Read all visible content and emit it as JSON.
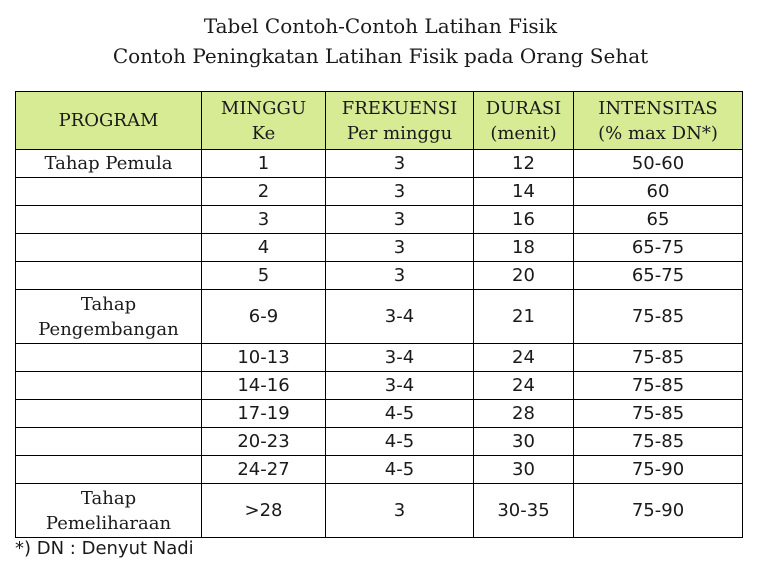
{
  "title_line1": "Tabel Contoh-Contoh Latihan Fisik",
  "title_line2": "Contoh Peningkatan Latihan Fisik pada Orang Sehat",
  "headers": [
    {
      "line1": "PROGRAM",
      "line2": ""
    },
    {
      "line1": "MINGGU",
      "line2": "Ke"
    },
    {
      "line1": "FREKUENSI",
      "line2": "Per minggu"
    },
    {
      "line1": "DURASI",
      "line2": "(menit)"
    },
    {
      "line1": "INTENSITAS",
      "line2": "(% max DN*)"
    }
  ],
  "rows": [
    {
      "program": [
        "Tahap Pemula"
      ],
      "minggu": "1",
      "frekuensi": "3",
      "durasi": "12",
      "intensitas": "50-60"
    },
    {
      "program": [],
      "minggu": "2",
      "frekuensi": "3",
      "durasi": "14",
      "intensitas": "60"
    },
    {
      "program": [],
      "minggu": "3",
      "frekuensi": "3",
      "durasi": "16",
      "intensitas": "65"
    },
    {
      "program": [],
      "minggu": "4",
      "frekuensi": "3",
      "durasi": "18",
      "intensitas": "65-75"
    },
    {
      "program": [],
      "minggu": "5",
      "frekuensi": "3",
      "durasi": "20",
      "intensitas": "65-75"
    },
    {
      "program": [
        "Tahap",
        "Pengembangan"
      ],
      "minggu": "6-9",
      "frekuensi": "3-4",
      "durasi": "21",
      "intensitas": "75-85"
    },
    {
      "program": [],
      "minggu": "10-13",
      "frekuensi": "3-4",
      "durasi": "24",
      "intensitas": "75-85"
    },
    {
      "program": [],
      "minggu": "14-16",
      "frekuensi": "3-4",
      "durasi": "24",
      "intensitas": "75-85"
    },
    {
      "program": [],
      "minggu": "17-19",
      "frekuensi": "4-5",
      "durasi": "28",
      "intensitas": "75-85"
    },
    {
      "program": [],
      "minggu": "20-23",
      "frekuensi": "4-5",
      "durasi": "30",
      "intensitas": "75-85"
    },
    {
      "program": [],
      "minggu": "24-27",
      "frekuensi": "4-5",
      "durasi": "30",
      "intensitas": "75-90"
    },
    {
      "program": [
        "Tahap",
        "Pemeliharaan"
      ],
      "minggu": ">28",
      "frekuensi": "3",
      "durasi": "30-35",
      "intensitas": "75-90"
    }
  ],
  "footnote": "*) DN : Denyut Nadi"
}
